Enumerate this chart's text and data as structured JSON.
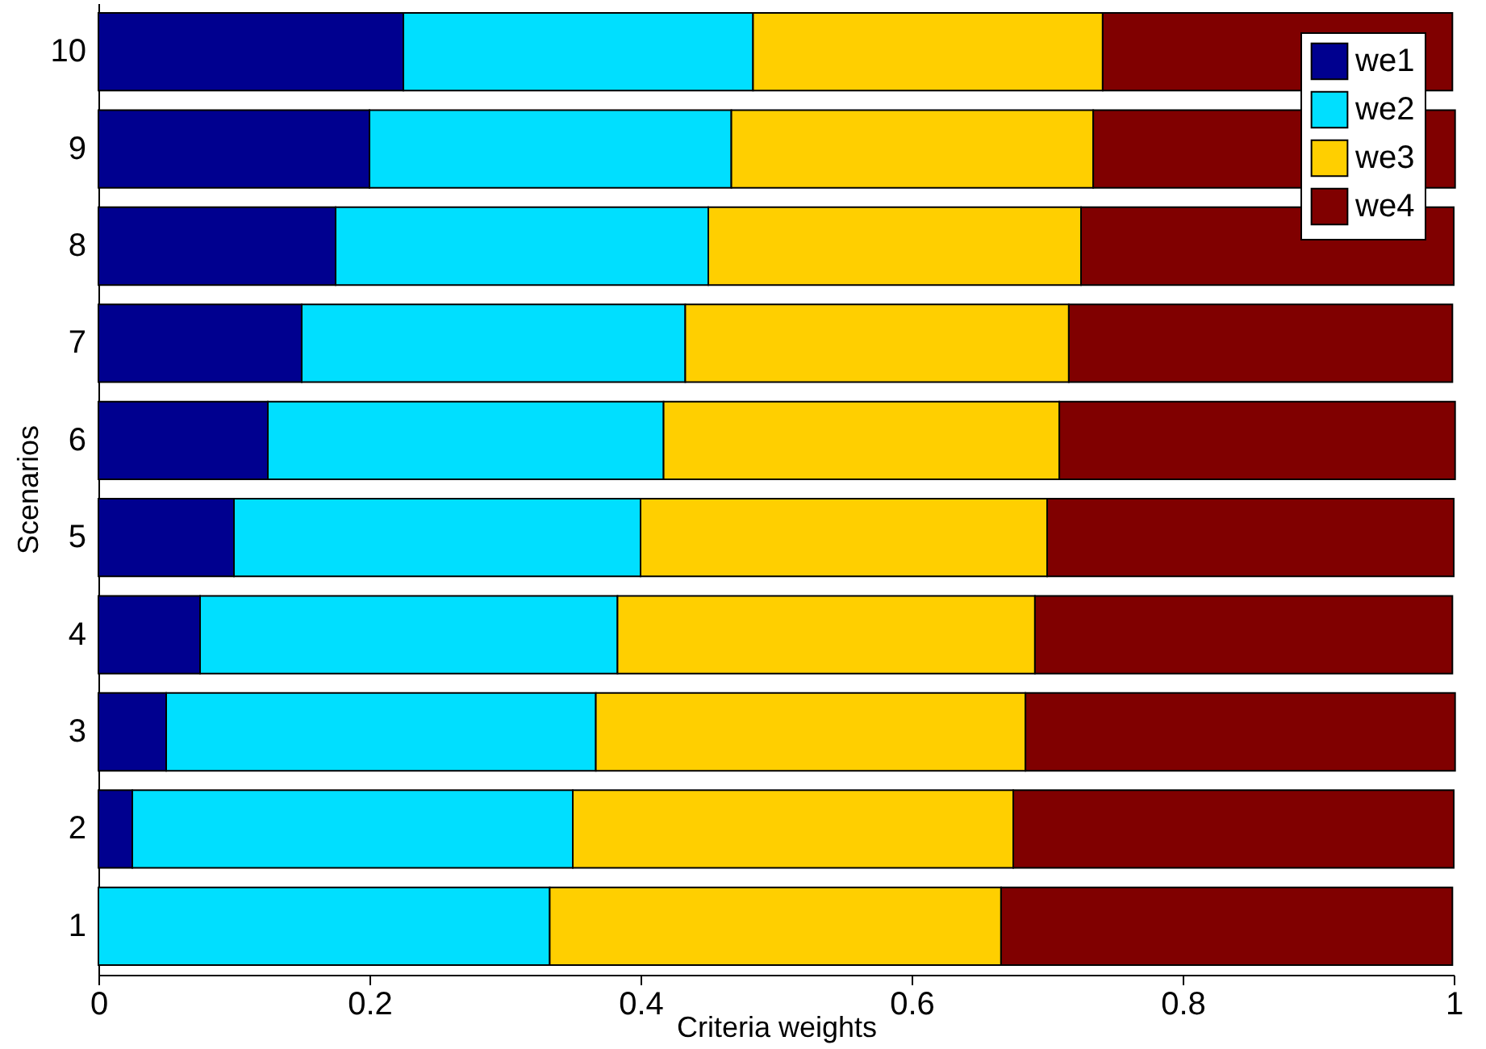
{
  "chart_data": {
    "type": "bar",
    "orientation": "horizontal",
    "stacked": true,
    "xlabel": "Criteria weights",
    "ylabel": "Scenarios",
    "categories": [
      "10",
      "9",
      "8",
      "7",
      "6",
      "5",
      "4",
      "3",
      "2",
      "1"
    ],
    "series": [
      {
        "name": "we1",
        "color": "#00008f",
        "values": [
          0.225,
          0.2,
          0.175,
          0.15,
          0.125,
          0.1,
          0.075,
          0.05,
          0.025,
          0
        ]
      },
      {
        "name": "we2",
        "color": "#00dfff",
        "values": [
          0.258,
          0.267,
          0.275,
          0.283,
          0.292,
          0.3,
          0.308,
          0.317,
          0.325,
          0.333
        ]
      },
      {
        "name": "we3",
        "color": "#ffcf00",
        "values": [
          0.258,
          0.267,
          0.275,
          0.283,
          0.292,
          0.3,
          0.308,
          0.317,
          0.325,
          0.333
        ]
      },
      {
        "name": "we4",
        "color": "#800000",
        "values": [
          0.258,
          0.267,
          0.275,
          0.283,
          0.292,
          0.3,
          0.308,
          0.317,
          0.325,
          0.333
        ]
      }
    ],
    "xlim": [
      0,
      1
    ],
    "xticks": [
      0,
      0.2,
      0.4,
      0.6,
      0.8,
      1
    ],
    "grid": false,
    "legend": "top right"
  }
}
